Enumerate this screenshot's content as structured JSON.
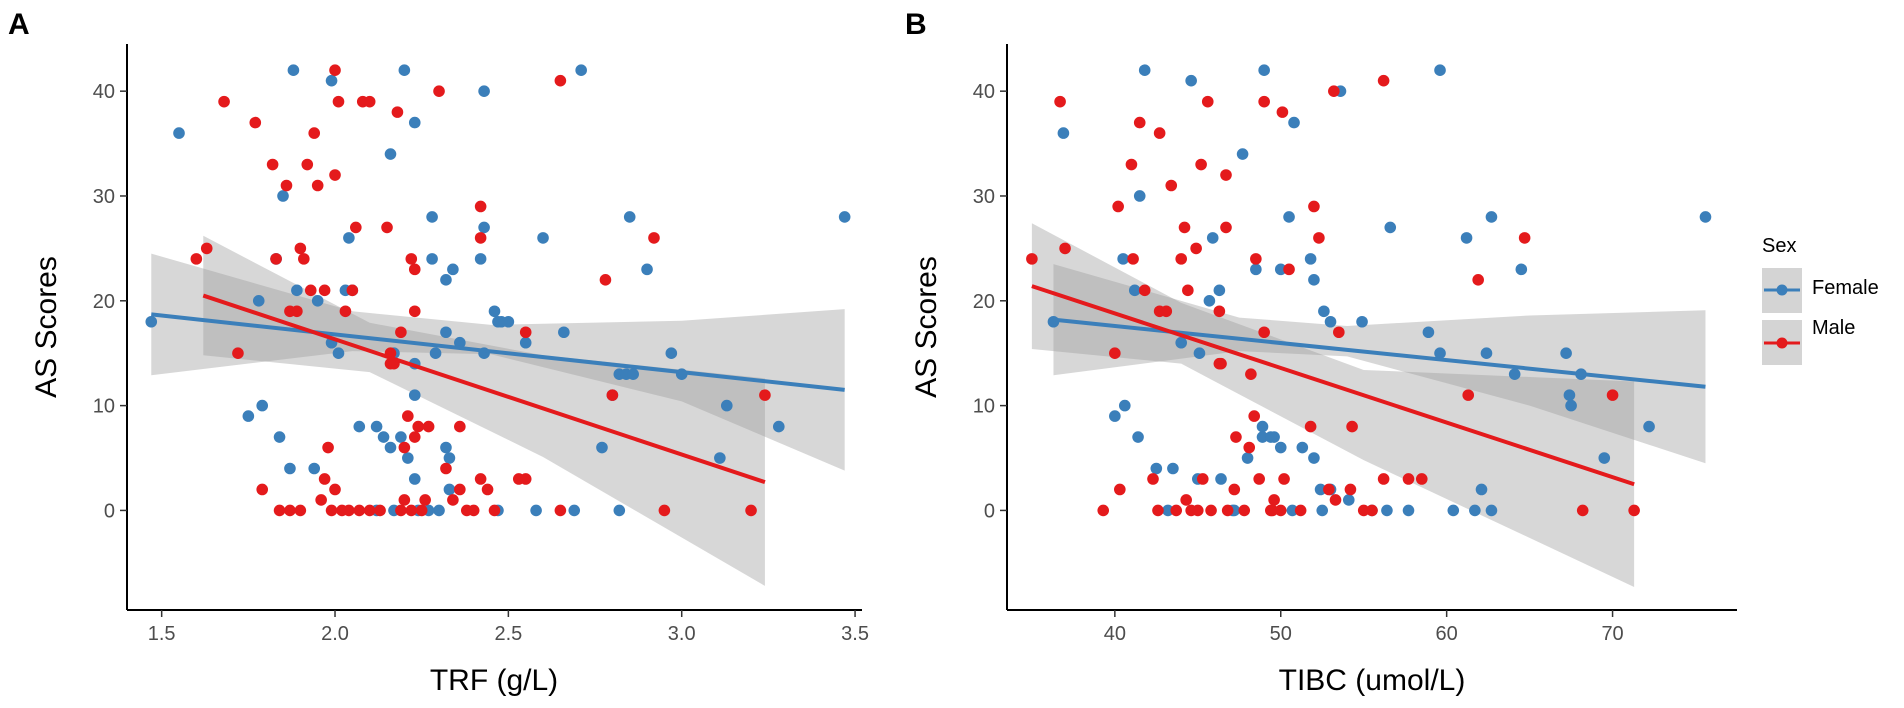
{
  "figure": {
    "legend": {
      "title": "Sex",
      "placement": "right",
      "entries": [
        {
          "label": "Female",
          "color": "#3b7fba"
        },
        {
          "label": "Male",
          "color": "#e41a1c"
        }
      ]
    }
  },
  "chart_data": [
    {
      "panel_label": "A",
      "type": "scatter",
      "xlabel": "TRF (g/L)",
      "ylabel": "AS Scores",
      "xlim": [
        1.4,
        3.52
      ],
      "ylim": [
        -9.5,
        44.5
      ],
      "xticks": [
        1.5,
        2.0,
        2.5,
        3.0,
        3.5
      ],
      "xtick_labels": [
        "1.5",
        "2.0",
        "2.5",
        "3.0",
        "3.5"
      ],
      "yticks": [
        0,
        10,
        20,
        30,
        40
      ],
      "ytick_labels": [
        "0",
        "10",
        "20",
        "30",
        "40"
      ],
      "series": [
        {
          "name": "Female",
          "color": "#3b7fba",
          "x": [
            1.47,
            1.55,
            1.88,
            1.99,
            2.2,
            2.71,
            2.43,
            2.23,
            2.16,
            1.83,
            1.85,
            2.28,
            2.43,
            2.85,
            3.47,
            1.83,
            2.42,
            2.34,
            2.32,
            2.28,
            2.6,
            1.89,
            2.03,
            2.04,
            1.78,
            2.46,
            2.5,
            2.32,
            1.95,
            2.48,
            2.47,
            2.55,
            2.66,
            2.43,
            2.23,
            1.99,
            2.01,
            2.17,
            2.36,
            2.29,
            2.97,
            3.0,
            2.82,
            2.84,
            2.86,
            3.13,
            3.28,
            2.77,
            2.8,
            2.05,
            2.23,
            2.9,
            1.75,
            1.79,
            1.84,
            1.87,
            1.94,
            2.07,
            2.12,
            2.14,
            2.16,
            2.19,
            2.32,
            2.33,
            2.23,
            2.21,
            2.33,
            2.12,
            2.17,
            2.24,
            2.3,
            2.27,
            2.47,
            2.58,
            2.69,
            2.82,
            3.11
          ],
          "y": [
            18,
            36,
            42,
            41,
            42,
            42,
            40,
            37,
            34,
            24,
            30,
            28,
            27,
            28,
            28,
            24,
            24,
            23,
            22,
            24,
            26,
            21,
            21,
            26,
            20,
            19,
            18,
            17,
            20,
            18,
            18,
            16,
            17,
            15,
            14,
            16,
            15,
            15,
            16,
            15,
            15,
            13,
            13,
            13,
            13,
            10,
            8,
            6,
            11,
            21,
            11,
            23,
            9,
            10,
            7,
            4,
            4,
            8,
            8,
            7,
            6,
            7,
            6,
            5,
            3,
            5,
            2,
            0,
            0,
            0,
            0,
            0,
            0,
            0,
            0,
            0,
            5
          ]
        },
        {
          "name": "Male",
          "color": "#e41a1c",
          "x": [
            1.6,
            1.63,
            1.68,
            1.77,
            1.82,
            1.83,
            1.86,
            1.87,
            1.9,
            1.91,
            1.92,
            1.94,
            1.95,
            1.97,
            2.0,
            2.0,
            2.01,
            2.03,
            2.06,
            2.08,
            2.1,
            2.15,
            2.16,
            2.18,
            2.19,
            2.22,
            2.23,
            2.23,
            2.23,
            2.24,
            2.3,
            2.36,
            2.42,
            2.42,
            2.55,
            2.65,
            2.78,
            2.8,
            2.92,
            3.24,
            1.72,
            1.79,
            1.84,
            1.87,
            1.89,
            1.9,
            1.93,
            1.96,
            1.97,
            1.98,
            1.99,
            2.0,
            2.02,
            2.04,
            2.05,
            2.07,
            2.1,
            2.13,
            2.16,
            2.17,
            2.19,
            2.2,
            2.21,
            2.22,
            2.25,
            2.27,
            2.32,
            2.34,
            2.36,
            2.38,
            2.4,
            2.42,
            2.44,
            2.46,
            2.53,
            2.55,
            2.65,
            2.95,
            3.2,
            2.2,
            2.26
          ],
          "y": [
            24,
            25,
            39,
            37,
            33,
            24,
            31,
            19,
            25,
            24,
            33,
            36,
            31,
            21,
            42,
            32,
            39,
            19,
            27,
            39,
            39,
            27,
            15,
            38,
            17,
            24,
            23,
            19,
            7,
            8,
            40,
            8,
            26,
            29,
            17,
            41,
            22,
            11,
            26,
            11,
            15,
            2,
            0,
            0,
            19,
            0,
            21,
            1,
            3,
            6,
            0,
            2,
            0,
            0,
            21,
            0,
            0,
            0,
            14,
            14,
            0,
            6,
            9,
            0,
            0,
            8,
            4,
            1,
            2,
            0,
            0,
            3,
            2,
            0,
            3,
            3,
            0,
            0,
            0,
            1,
            1
          ]
        }
      ],
      "fits": [
        {
          "name": "Female",
          "color": "#3b7fba",
          "x_range": [
            1.47,
            3.47
          ],
          "y_start": 18.7,
          "y_end": 11.5,
          "ci_lower": [
            [
              1.47,
              12.9
            ],
            [
              2.05,
              15.2
            ],
            [
              2.45,
              14.9
            ],
            [
              3.0,
              10.4
            ],
            [
              3.47,
              3.8
            ]
          ],
          "ci_upper": [
            [
              1.47,
              24.5
            ],
            [
              2.05,
              19.0
            ],
            [
              2.45,
              17.7
            ],
            [
              3.0,
              18.1
            ],
            [
              3.47,
              19.2
            ]
          ]
        },
        {
          "name": "Male",
          "color": "#e41a1c",
          "x_range": [
            1.62,
            3.24
          ],
          "y_start": 20.5,
          "y_end": 2.7,
          "ci_lower": [
            [
              1.62,
              14.8
            ],
            [
              2.1,
              13.2
            ],
            [
              2.6,
              5.1
            ],
            [
              3.24,
              -7.2
            ]
          ],
          "ci_upper": [
            [
              1.62,
              26.2
            ],
            [
              2.1,
              17.9
            ],
            [
              2.6,
              14.8
            ],
            [
              3.24,
              12.6
            ]
          ]
        }
      ]
    },
    {
      "panel_label": "B",
      "type": "scatter",
      "xlabel": "TIBC (umol/L)",
      "ylabel": "AS Scores",
      "xlim": [
        33.5,
        77.5
      ],
      "ylim": [
        -9.5,
        44.5
      ],
      "xticks": [
        40,
        50,
        60,
        70
      ],
      "xtick_labels": [
        "40",
        "50",
        "60",
        "70"
      ],
      "yticks": [
        0,
        10,
        20,
        30,
        40
      ],
      "ytick_labels": [
        "0",
        "10",
        "20",
        "30",
        "40"
      ],
      "series": [
        {
          "name": "Female",
          "color": "#3b7fba",
          "x": [
            36.3,
            36.9,
            41.8,
            44.6,
            49.0,
            53.6,
            59.6,
            50.8,
            41.5,
            47.7,
            45.9,
            46.3,
            50.5,
            56.6,
            61.2,
            62.7,
            64.5,
            75.6,
            40.5,
            41.2,
            45.7,
            50.0,
            52.0,
            51.8,
            48.5,
            45.1,
            44.0,
            48.9,
            49.6,
            52.6,
            53.0,
            54.9,
            59.6,
            58.9,
            62.4,
            64.1,
            67.2,
            68.1,
            69.5,
            72.2,
            40.0,
            40.6,
            41.4,
            42.5,
            43.5,
            45.0,
            46.4,
            47.1,
            48.0,
            48.9,
            49.4,
            50.0,
            51.3,
            52.0,
            52.4,
            53.0,
            54.1,
            55.5,
            57.7,
            60.4,
            62.1,
            67.4,
            67.5,
            43.2,
            47.2,
            50.7,
            52.5,
            56.4,
            62.7,
            61.7
          ],
          "y": [
            18,
            36,
            42,
            41,
            42,
            40,
            42,
            37,
            30,
            34,
            26,
            21,
            28,
            27,
            26,
            28,
            23,
            28,
            24,
            21,
            20,
            23,
            22,
            24,
            23,
            15,
            16,
            8,
            7,
            19,
            18,
            18,
            15,
            17,
            15,
            13,
            15,
            13,
            5,
            8,
            9,
            10,
            7,
            4,
            4,
            3,
            3,
            0,
            5,
            7,
            7,
            6,
            6,
            5,
            2,
            2,
            1,
            0,
            0,
            0,
            2,
            11,
            10,
            0,
            0,
            0,
            0,
            0,
            0,
            0
          ]
        },
        {
          "name": "Male",
          "color": "#e41a1c",
          "x": [
            35.0,
            36.7,
            37.0,
            40.2,
            41.0,
            41.1,
            41.5,
            41.8,
            42.7,
            43.4,
            44.0,
            44.2,
            44.4,
            44.9,
            45.2,
            45.6,
            46.3,
            46.7,
            46.7,
            48.2,
            48.5,
            49.0,
            49.0,
            50.1,
            50.5,
            52.0,
            52.3,
            53.2,
            53.5,
            54.3,
            56.2,
            61.9,
            64.7,
            70.0,
            40.0,
            39.3,
            40.3,
            42.3,
            42.6,
            43.1,
            43.7,
            44.3,
            44.6,
            45.0,
            45.3,
            45.8,
            46.4,
            46.8,
            47.2,
            47.8,
            48.1,
            48.4,
            48.7,
            49.4,
            49.6,
            50.0,
            50.2,
            51.2,
            51.8,
            52.9,
            53.3,
            54.2,
            55.0,
            55.5,
            56.2,
            57.7,
            58.5,
            61.3,
            68.2,
            71.3,
            46.3,
            47.3,
            49.5,
            42.7
          ],
          "y": [
            24,
            39,
            25,
            29,
            33,
            24,
            37,
            21,
            19,
            31,
            24,
            27,
            21,
            25,
            33,
            39,
            19,
            27,
            32,
            13,
            24,
            17,
            39,
            38,
            23,
            29,
            26,
            40,
            17,
            8,
            41,
            22,
            26,
            11,
            15,
            0,
            2,
            3,
            0,
            19,
            0,
            1,
            0,
            0,
            3,
            0,
            14,
            0,
            2,
            0,
            6,
            9,
            3,
            0,
            1,
            0,
            3,
            0,
            8,
            2,
            1,
            2,
            0,
            0,
            3,
            3,
            3,
            11,
            0,
            0,
            14,
            7,
            0,
            36
          ]
        }
      ],
      "fits": [
        {
          "name": "Female",
          "color": "#3b7fba",
          "x_range": [
            36.3,
            75.6
          ],
          "y_start": 18.2,
          "y_end": 11.8,
          "ci_lower": [
            [
              36.3,
              12.9
            ],
            [
              47.5,
              15.2
            ],
            [
              54.0,
              14.7
            ],
            [
              65.0,
              10.0
            ],
            [
              75.6,
              4.5
            ]
          ],
          "ci_upper": [
            [
              36.3,
              23.5
            ],
            [
              47.5,
              18.4
            ],
            [
              54.0,
              17.6
            ],
            [
              65.0,
              18.6
            ],
            [
              75.6,
              19.1
            ]
          ]
        },
        {
          "name": "Male",
          "color": "#e41a1c",
          "x_range": [
            35.0,
            71.3
          ],
          "y_start": 21.4,
          "y_end": 2.5,
          "ci_lower": [
            [
              35.0,
              15.4
            ],
            [
              44.0,
              14.0
            ],
            [
              55.0,
              4.8
            ],
            [
              71.3,
              -7.3
            ]
          ],
          "ci_upper": [
            [
              35.0,
              27.4
            ],
            [
              44.0,
              19.8
            ],
            [
              55.0,
              13.4
            ],
            [
              71.3,
              12.3
            ]
          ]
        }
      ]
    }
  ]
}
